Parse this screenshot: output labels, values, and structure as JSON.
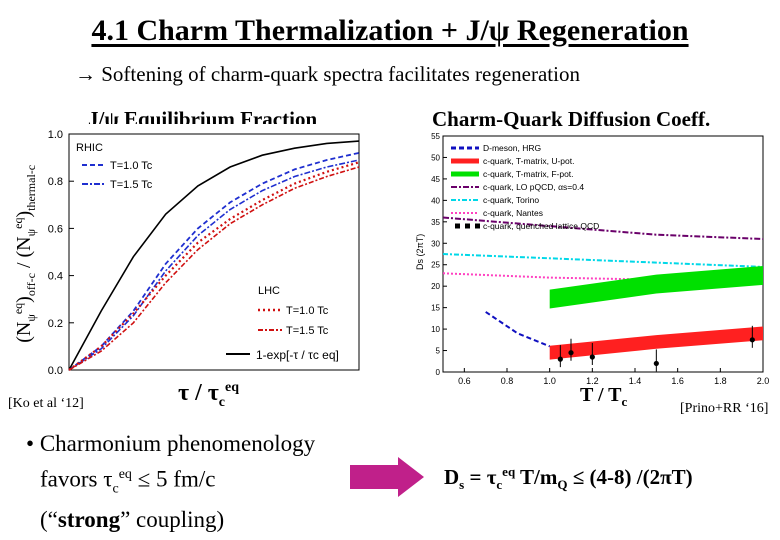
{
  "slide": {
    "title": "4.1 Charm Thermalization + J/ψ Regeneration",
    "subtitle": "→  Softening of charm-quark spectra facilitates regeneration"
  },
  "left_panel": {
    "heading": "J/ψ Equilibrium Fraction",
    "ylabel_main": "(N",
    "ylabel_psi": "ψ",
    "ylabel_eq": "eq",
    "ylabel_mid": ")",
    "ylabel_sub1": "off-c",
    "ylabel_slash": " / (N",
    "ylabel_mid2": ")",
    "ylabel_sub2": "thermal-c",
    "xlabel_tau": "τ / τ",
    "xlabel_c": "c",
    "xlabel_eq": "eq",
    "citation": "[Ko et al ‘12]",
    "colors": {
      "rhic_blue": "#1f2fd0",
      "lhc_red": "#d01010",
      "black": "#000000"
    }
  },
  "right_panel": {
    "heading": "Charm-Quark Diffusion Coeff.",
    "xlabel": "T / T",
    "xlabel_sub": "c",
    "citation": "[Prino+RR ‘16]",
    "colors": {
      "green": "#00e000",
      "red": "#ff2020",
      "purple": "#6a006a",
      "cyan": "#00d8e8",
      "pink": "#ff40c0",
      "blue": "#1010c0"
    }
  },
  "bullet": {
    "marker": "•",
    "line1": "Charmonium phenomenology",
    "line2_pre": "favors  τ",
    "line2_c": "c",
    "line2_eq": "eq",
    "line2_post": " ≤ 5 fm/c",
    "line3_pre": "(“",
    "line3_bold": "strong",
    "line3_post": "” coupling)"
  },
  "formula": {
    "pre": "D",
    "s": "s",
    "eq": " = τ",
    "c": "c",
    "eqsup": "eq",
    "post": " T/m",
    "q": "Q",
    "tail": " ≤ (4-8) /(2πT)"
  },
  "arrow_color": "#c0208a",
  "chart_data": [
    {
      "type": "line",
      "title": "J/ψ Equilibrium Fraction",
      "xlabel": "τ / τc eq",
      "ylabel": "(Nψ eq)off-c / (Nψ eq)thermal-c",
      "ylim": [
        0,
        1.0
      ],
      "y_ticks": [
        "0.0",
        "0.2",
        "0.4",
        "0.6",
        "0.8",
        "1.0"
      ],
      "legend": {
        "rhic_title": "RHIC",
        "rhic_entries": [
          "T=1.0 Tc",
          "T=1.5 Tc"
        ],
        "lhc_title": "LHC",
        "lhc_entries": [
          "T=1.0 Tc",
          "T=1.5 Tc"
        ],
        "ref_entry": "1-exp[-τ / τc eq]"
      },
      "series": [
        {
          "name": "1-exp[-τ/τc eq]",
          "values": [
            0.0,
            0.25,
            0.48,
            0.66,
            0.78,
            0.86,
            0.91,
            0.94,
            0.96,
            0.97
          ]
        },
        {
          "name": "RHIC T=1.0 Tc",
          "values": [
            0.0,
            0.1,
            0.25,
            0.45,
            0.6,
            0.71,
            0.79,
            0.85,
            0.89,
            0.92
          ]
        },
        {
          "name": "RHIC T=1.5 Tc",
          "values": [
            0.0,
            0.09,
            0.23,
            0.42,
            0.57,
            0.68,
            0.76,
            0.82,
            0.86,
            0.89
          ]
        },
        {
          "name": "LHC T=1.0 Tc",
          "values": [
            0.0,
            0.1,
            0.24,
            0.4,
            0.54,
            0.64,
            0.72,
            0.79,
            0.84,
            0.88
          ]
        },
        {
          "name": "LHC T=1.5 Tc",
          "values": [
            0.0,
            0.08,
            0.2,
            0.37,
            0.51,
            0.62,
            0.7,
            0.77,
            0.82,
            0.86
          ]
        }
      ]
    },
    {
      "type": "line",
      "title": "Charm-Quark Diffusion Coeff.",
      "xlabel": "T / Tc",
      "ylabel": "Ds (2πT)",
      "xlim": [
        0.5,
        2.0
      ],
      "ylim": [
        0,
        55
      ],
      "x_ticks": [
        "0.6",
        "0.8",
        "1.0",
        "1.2",
        "1.4",
        "1.6",
        "1.8",
        "2.0"
      ],
      "y_ticks": [
        "0",
        "5",
        "10",
        "15",
        "20",
        "25",
        "30",
        "35",
        "40",
        "45",
        "50",
        "55"
      ],
      "legend": [
        "D-meson, HRG",
        "c-quark, T-matrix, U-pot.",
        "c-quark, T-matrix, F-pot.",
        "c-quark, LO pQCD, αs=0.4",
        "c-quark, Torino",
        "c-quark, Nantes",
        "c-quark, quenched lattice QCD"
      ],
      "series": [
        {
          "name": "c-quark, LO pQCD, αs=0.4",
          "x": [
            0.5,
            1.0,
            1.5,
            2.0
          ],
          "values": [
            36,
            34,
            32,
            31
          ]
        },
        {
          "name": "c-quark, Torino",
          "x": [
            0.5,
            1.0,
            1.5,
            2.0
          ],
          "values": [
            27.5,
            26.5,
            25.5,
            24.5
          ]
        },
        {
          "name": "c-quark, Nantes",
          "x": [
            0.5,
            1.0,
            1.5,
            2.0
          ],
          "values": [
            23,
            22,
            21.5,
            21
          ]
        },
        {
          "name": "c-quark, T-matrix, F-pot.",
          "x": [
            1.0,
            1.5,
            2.0
          ],
          "values": [
            17,
            20.5,
            22.5
          ]
        },
        {
          "name": "c-quark, T-matrix, U-pot.",
          "x": [
            1.0,
            1.5,
            2.0
          ],
          "values": [
            4.5,
            7,
            9
          ]
        },
        {
          "name": "D-meson, HRG",
          "x": [
            0.7,
            0.85,
            1.0
          ],
          "values": [
            14,
            9,
            6
          ]
        },
        {
          "name": "c-quark, quenched lattice QCD",
          "x": [
            1.05,
            1.1,
            1.2,
            1.5,
            1.95
          ],
          "values": [
            3,
            4.5,
            3.5,
            2,
            7.5
          ]
        }
      ]
    }
  ]
}
